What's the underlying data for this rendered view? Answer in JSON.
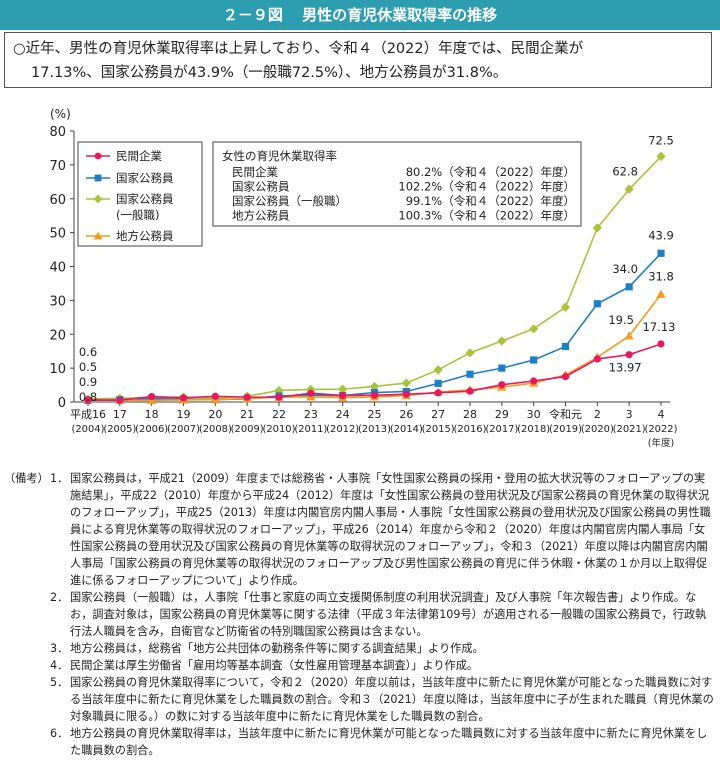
{
  "header": {
    "figure_no": "２－９図",
    "title": "男性の育児休業取得率の推移"
  },
  "summary": {
    "line1": "○近年、男性の育児休業取得率は上昇しており、令和４（2022）年度では、民間企業が",
    "line2": "17.13%、国家公務員が43.9%（一般職72.5%）、地方公務員が31.8%。"
  },
  "chart_data": {
    "type": "line",
    "ylabel": "(%)",
    "ylim": [
      0,
      80
    ],
    "yticks": [
      0,
      10,
      20,
      30,
      40,
      50,
      60,
      70,
      80
    ],
    "x_unit_label": "(年度)",
    "categories": [
      {
        "top": "平成16",
        "bottom": "(2004)"
      },
      {
        "top": "17",
        "bottom": "(2005)"
      },
      {
        "top": "18",
        "bottom": "(2006)"
      },
      {
        "top": "19",
        "bottom": "(2007)"
      },
      {
        "top": "20",
        "bottom": "(2008)"
      },
      {
        "top": "21",
        "bottom": "(2009)"
      },
      {
        "top": "22",
        "bottom": "(2010)"
      },
      {
        "top": "23",
        "bottom": "(2011)"
      },
      {
        "top": "24",
        "bottom": "(2012)"
      },
      {
        "top": "25",
        "bottom": "(2013)"
      },
      {
        "top": "26",
        "bottom": "(2014)"
      },
      {
        "top": "27",
        "bottom": "(2015)"
      },
      {
        "top": "28",
        "bottom": "(2016)"
      },
      {
        "top": "29",
        "bottom": "(2017)"
      },
      {
        "top": "30",
        "bottom": "(2018)"
      },
      {
        "top": "令和元",
        "bottom": "(2019)"
      },
      {
        "top": "2",
        "bottom": "(2020)"
      },
      {
        "top": "3",
        "bottom": "(2021)"
      },
      {
        "top": "4",
        "bottom": "(2022)"
      }
    ],
    "series": [
      {
        "name": "民間企業",
        "color": "#e6185e",
        "marker": "circle",
        "start": 0,
        "values": [
          0.6,
          0.5,
          1.6,
          1.2,
          1.7,
          1.4,
          1.4,
          2.6,
          1.9,
          2.0,
          2.3,
          2.7,
          3.2,
          5.1,
          6.2,
          7.5,
          12.7,
          13.97,
          17.13
        ]
      },
      {
        "name": "国家公務員",
        "color": "#1f7fc4",
        "marker": "square",
        "start": 0,
        "values": [
          0.5,
          0.7,
          1.0,
          0.8,
          0.7,
          0.9,
          1.8,
          2.0,
          1.9,
          2.8,
          3.1,
          5.5,
          8.2,
          10.0,
          12.4,
          16.4,
          29.0,
          34.0,
          43.9
        ]
      },
      {
        "name": "国家公務員\n(一般職)",
        "color": "#a6c43b",
        "marker": "diamond",
        "start": 0,
        "values": [
          0.9,
          1.1,
          1.3,
          1.5,
          1.1,
          1.7,
          3.4,
          3.7,
          3.8,
          4.6,
          5.6,
          9.5,
          14.5,
          18.0,
          21.6,
          28.0,
          51.4,
          62.8,
          72.5
        ]
      },
      {
        "name": "地方公務員",
        "color": "#f39b1c",
        "marker": "triangle",
        "start": 0,
        "values": [
          0.8,
          0.5,
          0.5,
          0.6,
          0.7,
          1.0,
          1.4,
          1.5,
          1.3,
          1.5,
          1.9,
          2.9,
          3.6,
          4.4,
          5.6,
          8.0,
          13.2,
          19.5,
          31.8
        ]
      }
    ],
    "start_labels": [
      "0.6",
      "0.5",
      "0.9",
      "0.8"
    ],
    "data_labels": [
      {
        "series": 2,
        "index": 17,
        "text": "62.8"
      },
      {
        "series": 2,
        "index": 18,
        "text": "72.5"
      },
      {
        "series": 1,
        "index": 17,
        "text": "34.0"
      },
      {
        "series": 1,
        "index": 18,
        "text": "43.9"
      },
      {
        "series": 3,
        "index": 17,
        "text": "19.5"
      },
      {
        "series": 3,
        "index": 18,
        "text": "31.8"
      },
      {
        "series": 0,
        "index": 17,
        "text": "13.97"
      },
      {
        "series": 0,
        "index": 18,
        "text": "17.13"
      }
    ],
    "inset": {
      "title": "女性の育児休業取得率",
      "rows": [
        {
          "label": "民間企業",
          "value": "80.2%（令和４（2022）年度）"
        },
        {
          "label": "国家公務員",
          "value": "102.2%（令和４（2022）年度）"
        },
        {
          "label": "国家公務員（一般職）",
          "value": "99.1%（令和４（2022）年度）"
        },
        {
          "label": "地方公務員",
          "value": "100.3%（令和４（2022）年度）"
        }
      ]
    },
    "legend_position": "top-left",
    "grid": false
  },
  "notes": [
    {
      "k1": "（備考）",
      "k2": "1．",
      "text": "国家公務員は，平成21（2009）年度までは総務省・人事院「女性国家公務員の採用・登用の拡大状況等のフォローアップの実施結果」，平成22（2010）年度から平成24（2012）年度は「女性国家公務員の登用状況及び国家公務員の育児休業の取得状況のフォローアップ」，平成25（2013）年度は内閣官房内閣人事局・人事院「女性国家公務員の登用状況及び国家公務員の男性職員による育児休業等の取得状況のフォローアップ」，平成26（2014）年度から令和２（2020）年度は内閣官房内閣人事局「女性国家公務員の登用状況及び国家公務員の育児休業等の取得状況のフォローアップ」，令和３（2021）年度以降は内閣官房内閣人事局「国家公務員の育児休業等の取得状況のフォローアップ及び男性国家公務員の育児に伴う休暇・休業の１か月以上取得促進に係るフォローアップについて」より作成。"
    },
    {
      "k1": "",
      "k2": "2．",
      "text": "国家公務員（一般職）は，人事院「仕事と家庭の両立支援関係制度の利用状況調査」及び人事院「年次報告書」より作成。なお，調査対象は，国家公務員の育児休業等に関する法律（平成３年法律第109号）が適用される一般職の国家公務員で，行政執行法人職員を含み，自衛官など防衛省の特別職国家公務員は含まない。"
    },
    {
      "k1": "",
      "k2": "3．",
      "text": "地方公務員は，総務省「地方公共団体の勤務条件等に関する調査結果」より作成。"
    },
    {
      "k1": "",
      "k2": "4．",
      "text": "民間企業は厚生労働省「雇用均等基本調査（女性雇用管理基本調査）」より作成。"
    },
    {
      "k1": "",
      "k2": "5．",
      "text": "国家公務員の育児休業取得率について，令和２（2020）年度以前は，当該年度中に新たに育児休業が可能となった職員数に対する当該年度中に新たに育児休業をした職員数の割合。令和３（2021）年度以降は，当該年度中に子が生まれた職員（育児休業の対象職員に限る。）の数に対する当該年度中に新たに育児休業をした職員数の割合。"
    },
    {
      "k1": "",
      "k2": "6．",
      "text": "地方公務員の育児休業取得率は，当該年度中に新たに育児休業が可能となった職員数に対する当該年度中に新たに育児休業をした職員数の割合。"
    }
  ]
}
